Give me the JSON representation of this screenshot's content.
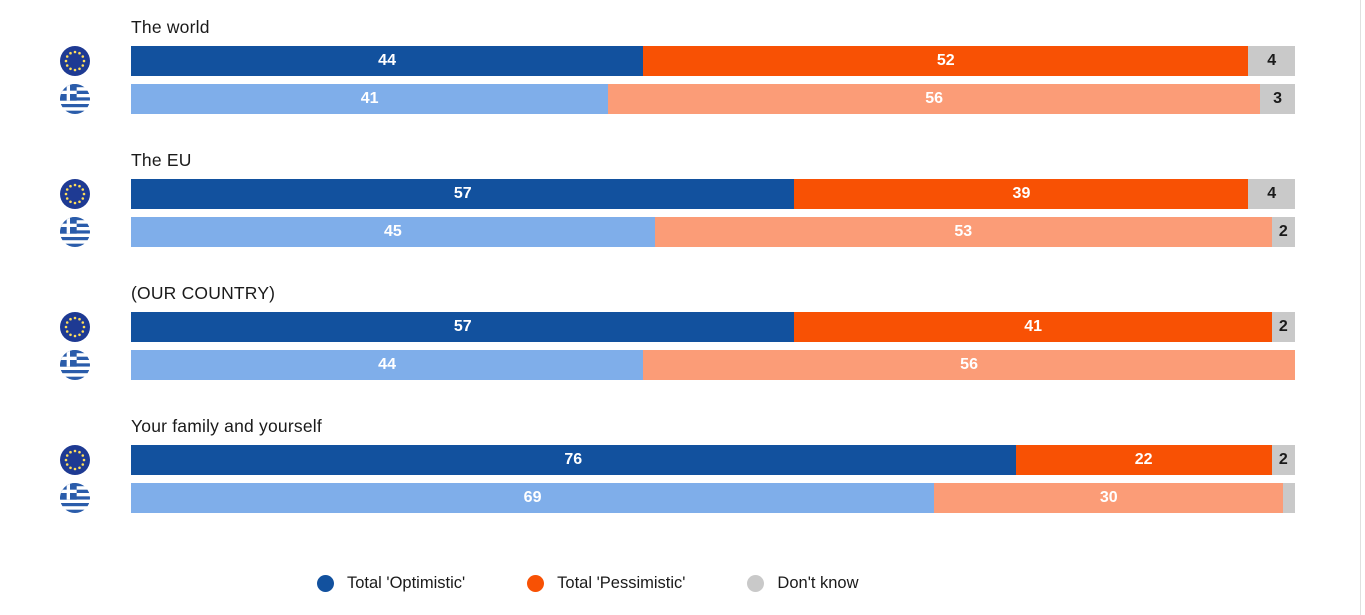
{
  "page": {
    "background": "#ffffff"
  },
  "chart_data": {
    "type": "bar",
    "orientation": "horizontal",
    "stacked": true,
    "value_unit": "percent",
    "axis_range": [
      0,
      100
    ],
    "grid": false,
    "legend_position": "bottom",
    "series_keys": [
      "optimistic",
      "pessimistic",
      "dont_know"
    ],
    "groups": [
      {
        "title": "The world",
        "rows": [
          {
            "entity": "EU",
            "flag": "eu-flag-icon",
            "palette": "eu",
            "segments": [
              {
                "key": "optimistic",
                "value": 44,
                "label": "44"
              },
              {
                "key": "pessimistic",
                "value": 52,
                "label": "52"
              },
              {
                "key": "dont_know",
                "value": 4,
                "label": "4"
              }
            ]
          },
          {
            "entity": "Greece",
            "flag": "greece-flag-icon",
            "palette": "gr",
            "segments": [
              {
                "key": "optimistic",
                "value": 41,
                "label": "41"
              },
              {
                "key": "pessimistic",
                "value": 56,
                "label": "56"
              },
              {
                "key": "dont_know",
                "value": 3,
                "label": "3"
              }
            ]
          }
        ]
      },
      {
        "title": "The EU",
        "rows": [
          {
            "entity": "EU",
            "flag": "eu-flag-icon",
            "palette": "eu",
            "segments": [
              {
                "key": "optimistic",
                "value": 57,
                "label": "57"
              },
              {
                "key": "pessimistic",
                "value": 39,
                "label": "39"
              },
              {
                "key": "dont_know",
                "value": 4,
                "label": "4"
              }
            ]
          },
          {
            "entity": "Greece",
            "flag": "greece-flag-icon",
            "palette": "gr",
            "segments": [
              {
                "key": "optimistic",
                "value": 45,
                "label": "45"
              },
              {
                "key": "pessimistic",
                "value": 53,
                "label": "53"
              },
              {
                "key": "dont_know",
                "value": 2,
                "label": "2"
              }
            ]
          }
        ]
      },
      {
        "title": "(OUR COUNTRY)",
        "rows": [
          {
            "entity": "EU",
            "flag": "eu-flag-icon",
            "palette": "eu",
            "segments": [
              {
                "key": "optimistic",
                "value": 57,
                "label": "57"
              },
              {
                "key": "pessimistic",
                "value": 41,
                "label": "41"
              },
              {
                "key": "dont_know",
                "value": 2,
                "label": "2"
              }
            ]
          },
          {
            "entity": "Greece",
            "flag": "greece-flag-icon",
            "palette": "gr",
            "segments": [
              {
                "key": "optimistic",
                "value": 44,
                "label": "44"
              },
              {
                "key": "pessimistic",
                "value": 56,
                "label": "56"
              },
              {
                "key": "dont_know",
                "value": 0,
                "label": ""
              }
            ]
          }
        ]
      },
      {
        "title": "Your family and yourself",
        "rows": [
          {
            "entity": "EU",
            "flag": "eu-flag-icon",
            "palette": "eu",
            "segments": [
              {
                "key": "optimistic",
                "value": 76,
                "label": "76"
              },
              {
                "key": "pessimistic",
                "value": 22,
                "label": "22"
              },
              {
                "key": "dont_know",
                "value": 2,
                "label": "2"
              }
            ]
          },
          {
            "entity": "Greece",
            "flag": "greece-flag-icon",
            "palette": "gr",
            "segments": [
              {
                "key": "optimistic",
                "value": 69,
                "label": "69"
              },
              {
                "key": "pessimistic",
                "value": 30,
                "label": "30"
              },
              {
                "key": "dont_know",
                "value": 1,
                "label": ""
              }
            ]
          }
        ]
      }
    ]
  },
  "legend": {
    "items": [
      {
        "label": "Total 'Optimistic'",
        "color": "#12519E"
      },
      {
        "label": "Total 'Pessimistic'",
        "color": "#F85104"
      },
      {
        "label": "Don't know",
        "color": "#C9C9C9"
      }
    ]
  },
  "colors": {
    "eu": {
      "optimistic": "#12519E",
      "pessimistic": "#F85104",
      "dont_know": "#C9C9C9"
    },
    "gr": {
      "optimistic": "#7FAEEA",
      "pessimistic": "#FB9C77",
      "dont_know": "#C9C9C9"
    },
    "label_on_color": "#FFFFFF",
    "label_on_gray": "#1A1A1A",
    "title_text": "#1A1A1A",
    "eu_flag_blue": "#1E3A93",
    "eu_flag_star": "#FFDE59",
    "greek_flag_blue": "#2A5CAA",
    "page_edge_line": "#E0E0E0"
  }
}
